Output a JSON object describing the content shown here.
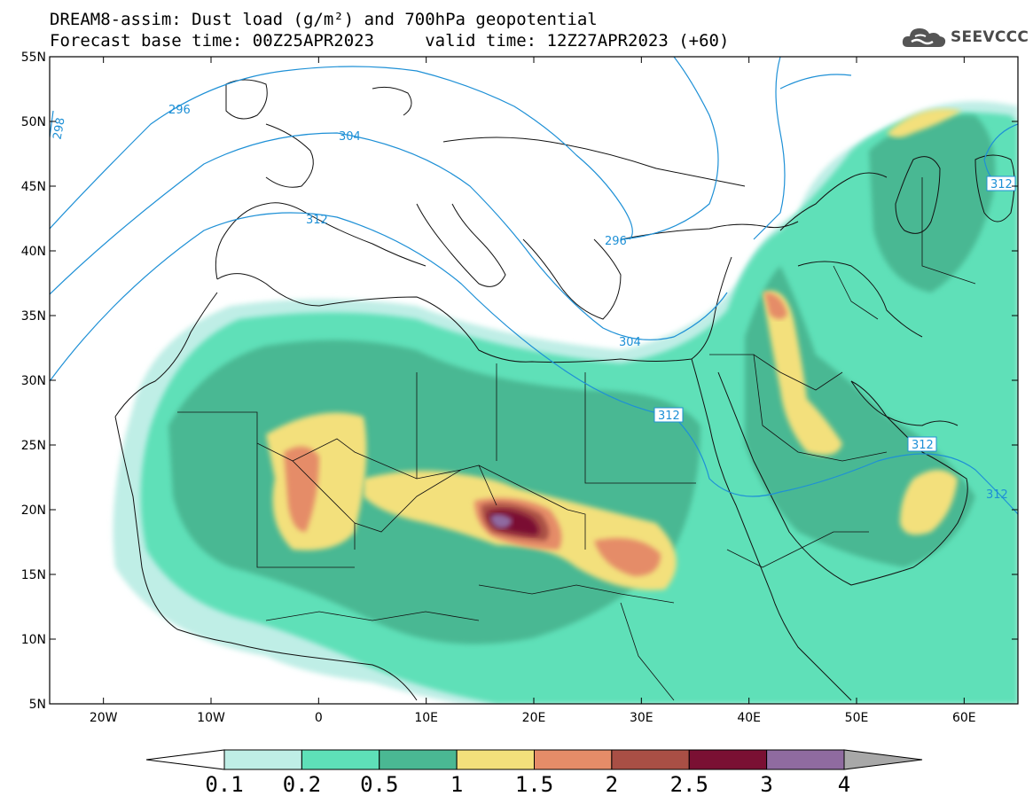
{
  "title": {
    "line1": "DREAM8-assim: Dust load (g/m²) and 700hPa geopotential",
    "line2": "Forecast base time: 00Z25APR2023     valid time: 12Z27APR2023 (+60)"
  },
  "logo": {
    "text": "SEEVCCC",
    "icon": "cloud-icon"
  },
  "map": {
    "lon_range": [
      -25,
      65
    ],
    "lat_range": [
      5,
      55
    ],
    "lat_ticks": [
      "55N",
      "50N",
      "45N",
      "40N",
      "35N",
      "30N",
      "25N",
      "20N",
      "15N",
      "10N",
      "5N"
    ],
    "lon_ticks": [
      "20W",
      "10W",
      "0",
      "10E",
      "20E",
      "30E",
      "40E",
      "50E",
      "60E"
    ],
    "contour_labels": [
      "296",
      "298",
      "304",
      "312",
      "312",
      "296",
      "304",
      "312",
      "312",
      "312"
    ]
  },
  "colorbar": {
    "labels": [
      "0.1",
      "0.2",
      "0.5",
      "1",
      "1.5",
      "2",
      "2.5",
      "3",
      "4"
    ],
    "colors": [
      "#bfeee6",
      "#5ee0b8",
      "#4ab893",
      "#f3e07b",
      "#e58c68",
      "#a94f45",
      "#7a1033",
      "#8f6ba0"
    ],
    "under_color": "#ffffff",
    "over_color": "#a8a8a8"
  }
}
